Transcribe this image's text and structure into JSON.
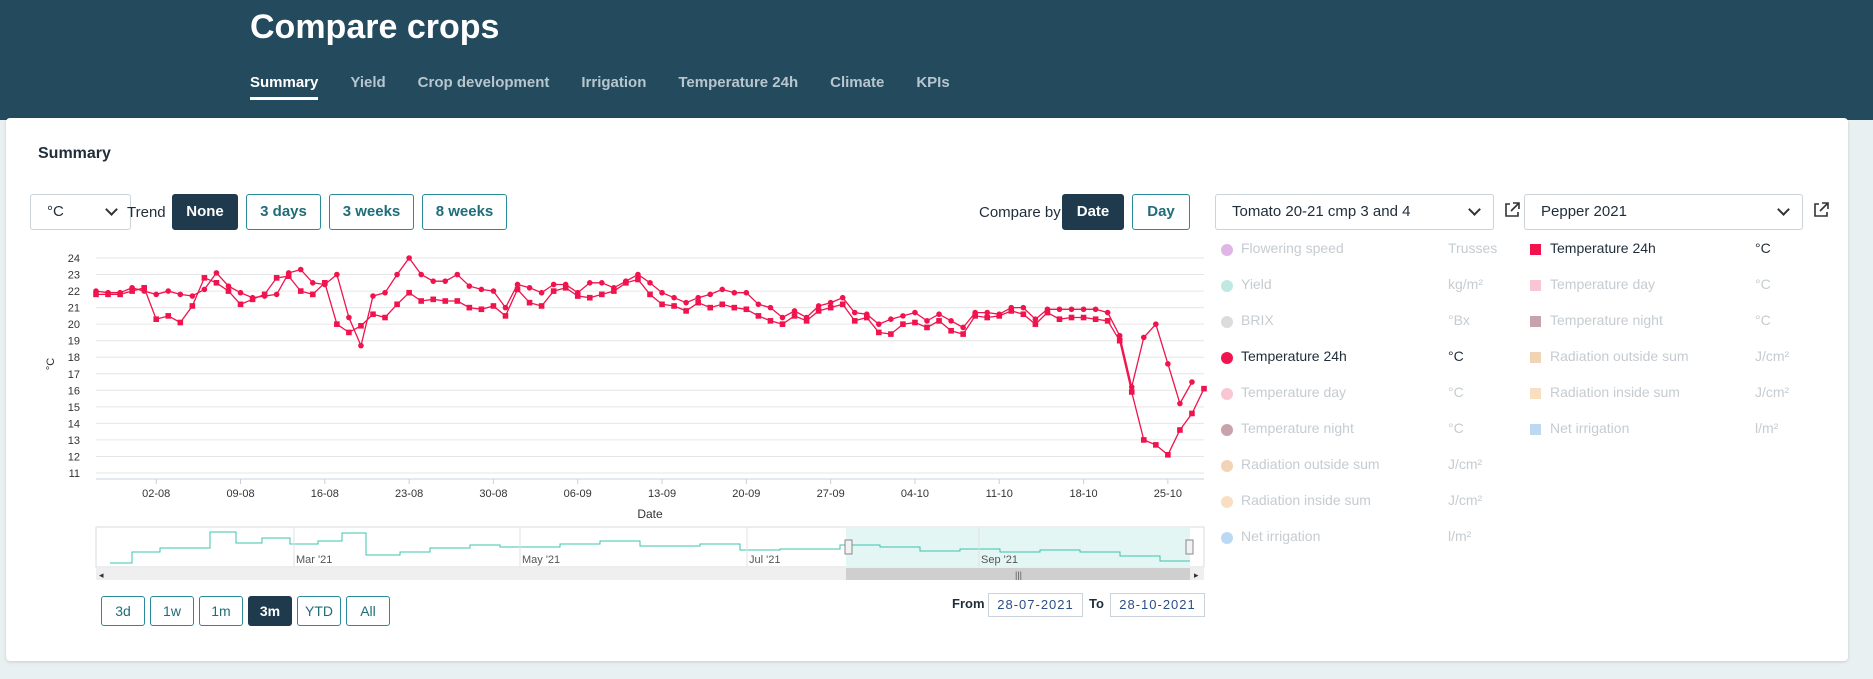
{
  "page": {
    "title": "Compare crops"
  },
  "tabs": [
    {
      "label": "Summary",
      "active": true
    },
    {
      "label": "Yield",
      "active": false
    },
    {
      "label": "Crop development",
      "active": false
    },
    {
      "label": "Irrigation",
      "active": false
    },
    {
      "label": "Temperature 24h",
      "active": false
    },
    {
      "label": "Climate",
      "active": false
    },
    {
      "label": "KPIs",
      "active": false
    }
  ],
  "summary": {
    "title": "Summary",
    "unit_select": "°C",
    "trend_label": "Trend",
    "trend_buttons": [
      {
        "label": "None",
        "active": true
      },
      {
        "label": "3 days",
        "active": false
      },
      {
        "label": "3 weeks",
        "active": false
      },
      {
        "label": "8 weeks",
        "active": false
      }
    ],
    "compare_by_label": "Compare by",
    "compare_buttons": [
      {
        "label": "Date",
        "active": true
      },
      {
        "label": "Day",
        "active": false
      }
    ],
    "crop_selects": [
      "Tomato 20-21 cmp 3 and 4",
      "Pepper 2021"
    ]
  },
  "legend_left": [
    {
      "name": "Flowering speed",
      "unit": "Trusses",
      "color": "#e0b6e6",
      "active": false
    },
    {
      "name": "Yield",
      "unit": "kg/m²",
      "color": "#bfe9e2",
      "active": false
    },
    {
      "name": "BRIX",
      "unit": "°Bx",
      "color": "#dcdcdc",
      "active": false
    },
    {
      "name": "Temperature 24h",
      "unit": "°C",
      "color": "#f0134d",
      "active": true
    },
    {
      "name": "Temperature day",
      "unit": "°C",
      "color": "#f9c6d3",
      "active": false
    },
    {
      "name": "Temperature night",
      "unit": "°C",
      "color": "#c9a3ac",
      "active": false
    },
    {
      "name": "Radiation outside sum",
      "unit": "J/cm²",
      "color": "#f3d3b6",
      "active": false
    },
    {
      "name": "Radiation inside sum",
      "unit": "J/cm²",
      "color": "#f9dfc2",
      "active": false
    },
    {
      "name": "Net irrigation",
      "unit": "l/m²",
      "color": "#bcd9f4",
      "active": false
    }
  ],
  "legend_right": [
    {
      "name": "Temperature 24h",
      "unit": "°C",
      "color": "#f0134d",
      "active": true
    },
    {
      "name": "Temperature day",
      "unit": "°C",
      "color": "#f9c6d3",
      "active": false
    },
    {
      "name": "Temperature night",
      "unit": "°C",
      "color": "#c9a3ac",
      "active": false
    },
    {
      "name": "Radiation outside sum",
      "unit": "J/cm²",
      "color": "#f3d3b6",
      "active": false
    },
    {
      "name": "Radiation inside sum",
      "unit": "J/cm²",
      "color": "#f9dfc2",
      "active": false
    },
    {
      "name": "Net irrigation",
      "unit": "l/m²",
      "color": "#bcd9f4",
      "active": false
    }
  ],
  "range_buttons": [
    {
      "label": "3d",
      "active": false
    },
    {
      "label": "1w",
      "active": false
    },
    {
      "label": "1m",
      "active": false
    },
    {
      "label": "3m",
      "active": true
    },
    {
      "label": "YTD",
      "active": false
    },
    {
      "label": "All",
      "active": false
    }
  ],
  "date_range": {
    "from_label": "From",
    "from": "28-07-2021",
    "to_label": "To",
    "to": "28-10-2021"
  },
  "navigator": {
    "labels": [
      "Mar '21",
      "May '21",
      "Jul '21",
      "Sep '21"
    ]
  },
  "chart_data": {
    "type": "line",
    "xlabel": "Date",
    "ylabel": "°C",
    "ylim": [
      11,
      24
    ],
    "yticks": [
      11,
      12,
      13,
      14,
      15,
      16,
      17,
      18,
      19,
      20,
      21,
      22,
      23,
      24
    ],
    "x_tick_labels": [
      "02-08",
      "09-08",
      "16-08",
      "23-08",
      "30-08",
      "06-09",
      "13-09",
      "20-09",
      "27-09",
      "04-10",
      "11-10",
      "18-10",
      "25-10"
    ],
    "x_range": [
      "2021-07-28",
      "2021-10-28"
    ],
    "grid": true,
    "series": [
      {
        "color": "#f0134d",
        "marker": "circle",
        "points": [
          [
            "2021-07-28",
            22.0
          ],
          [
            "2021-07-29",
            21.9
          ],
          [
            "2021-07-30",
            21.9
          ],
          [
            "2021-07-31",
            22.2
          ],
          [
            "2021-08-01",
            22.0
          ],
          [
            "2021-08-02",
            21.8
          ],
          [
            "2021-08-03",
            22.0
          ],
          [
            "2021-08-04",
            21.8
          ],
          [
            "2021-08-05",
            21.7
          ],
          [
            "2021-08-06",
            22.1
          ],
          [
            "2021-08-07",
            23.1
          ],
          [
            "2021-08-08",
            22.3
          ],
          [
            "2021-08-09",
            21.9
          ],
          [
            "2021-08-10",
            21.6
          ],
          [
            "2021-08-11",
            21.7
          ],
          [
            "2021-08-12",
            21.8
          ],
          [
            "2021-08-13",
            23.1
          ],
          [
            "2021-08-14",
            23.3
          ],
          [
            "2021-08-15",
            22.5
          ],
          [
            "2021-08-16",
            22.4
          ],
          [
            "2021-08-17",
            23.0
          ],
          [
            "2021-08-18",
            20.4
          ],
          [
            "2021-08-19",
            18.7
          ],
          [
            "2021-08-20",
            21.7
          ],
          [
            "2021-08-21",
            21.9
          ],
          [
            "2021-08-22",
            23.0
          ],
          [
            "2021-08-23",
            24.0
          ],
          [
            "2021-08-24",
            23.0
          ],
          [
            "2021-08-25",
            22.6
          ],
          [
            "2021-08-26",
            22.6
          ],
          [
            "2021-08-27",
            23.0
          ],
          [
            "2021-08-28",
            22.3
          ],
          [
            "2021-08-29",
            22.1
          ],
          [
            "2021-08-30",
            22.0
          ],
          [
            "2021-08-31",
            21.0
          ],
          [
            "2021-09-01",
            22.4
          ],
          [
            "2021-09-02",
            22.2
          ],
          [
            "2021-09-03",
            21.9
          ],
          [
            "2021-09-04",
            22.4
          ],
          [
            "2021-09-05",
            22.4
          ],
          [
            "2021-09-06",
            21.9
          ],
          [
            "2021-09-07",
            22.5
          ],
          [
            "2021-09-08",
            22.5
          ],
          [
            "2021-09-09",
            22.2
          ],
          [
            "2021-09-10",
            22.6
          ],
          [
            "2021-09-11",
            23.0
          ],
          [
            "2021-09-12",
            22.5
          ],
          [
            "2021-09-13",
            21.9
          ],
          [
            "2021-09-14",
            21.6
          ],
          [
            "2021-09-15",
            21.3
          ],
          [
            "2021-09-16",
            21.6
          ],
          [
            "2021-09-17",
            21.8
          ],
          [
            "2021-09-18",
            22.1
          ],
          [
            "2021-09-19",
            21.9
          ],
          [
            "2021-09-20",
            21.9
          ],
          [
            "2021-09-21",
            21.2
          ],
          [
            "2021-09-22",
            21.0
          ],
          [
            "2021-09-23",
            20.4
          ],
          [
            "2021-09-24",
            20.8
          ],
          [
            "2021-09-25",
            20.4
          ],
          [
            "2021-09-26",
            21.1
          ],
          [
            "2021-09-27",
            21.3
          ],
          [
            "2021-09-28",
            21.6
          ],
          [
            "2021-09-29",
            20.7
          ],
          [
            "2021-09-30",
            20.6
          ],
          [
            "2021-10-01",
            20.0
          ],
          [
            "2021-10-02",
            20.3
          ],
          [
            "2021-10-03",
            20.5
          ],
          [
            "2021-10-04",
            20.7
          ],
          [
            "2021-10-05",
            20.2
          ],
          [
            "2021-10-06",
            20.6
          ],
          [
            "2021-10-07",
            20.2
          ],
          [
            "2021-10-08",
            19.8
          ],
          [
            "2021-10-09",
            20.7
          ],
          [
            "2021-10-10",
            20.7
          ],
          [
            "2021-10-11",
            20.6
          ],
          [
            "2021-10-12",
            21.0
          ],
          [
            "2021-10-13",
            21.0
          ],
          [
            "2021-10-14",
            20.3
          ],
          [
            "2021-10-15",
            20.9
          ],
          [
            "2021-10-16",
            20.9
          ],
          [
            "2021-10-17",
            20.9
          ],
          [
            "2021-10-18",
            20.9
          ],
          [
            "2021-10-19",
            20.9
          ],
          [
            "2021-10-20",
            20.7
          ],
          [
            "2021-10-21",
            19.3
          ],
          [
            "2021-10-22",
            16.2
          ],
          [
            "2021-10-23",
            19.2
          ],
          [
            "2021-10-24",
            20.0
          ],
          [
            "2021-10-25",
            17.6
          ],
          [
            "2021-10-26",
            15.2
          ],
          [
            "2021-10-27",
            16.5
          ]
        ]
      },
      {
        "color": "#f0134d",
        "marker": "square",
        "points": [
          [
            "2021-07-28",
            21.8
          ],
          [
            "2021-07-29",
            21.8
          ],
          [
            "2021-07-30",
            21.8
          ],
          [
            "2021-07-31",
            22.0
          ],
          [
            "2021-08-01",
            22.2
          ],
          [
            "2021-08-02",
            20.3
          ],
          [
            "2021-08-03",
            20.5
          ],
          [
            "2021-08-04",
            20.1
          ],
          [
            "2021-08-05",
            21.1
          ],
          [
            "2021-08-06",
            22.8
          ],
          [
            "2021-08-07",
            22.5
          ],
          [
            "2021-08-08",
            22.0
          ],
          [
            "2021-08-09",
            21.2
          ],
          [
            "2021-08-10",
            21.5
          ],
          [
            "2021-08-11",
            21.8
          ],
          [
            "2021-08-12",
            22.8
          ],
          [
            "2021-08-13",
            22.9
          ],
          [
            "2021-08-14",
            22.0
          ],
          [
            "2021-08-15",
            21.8
          ],
          [
            "2021-08-16",
            22.5
          ],
          [
            "2021-08-17",
            20.0
          ],
          [
            "2021-08-18",
            19.5
          ],
          [
            "2021-08-19",
            19.9
          ],
          [
            "2021-08-20",
            20.6
          ],
          [
            "2021-08-21",
            20.4
          ],
          [
            "2021-08-22",
            21.2
          ],
          [
            "2021-08-23",
            21.9
          ],
          [
            "2021-08-24",
            21.4
          ],
          [
            "2021-08-25",
            21.5
          ],
          [
            "2021-08-26",
            21.4
          ],
          [
            "2021-08-27",
            21.4
          ],
          [
            "2021-08-28",
            21.0
          ],
          [
            "2021-08-29",
            20.9
          ],
          [
            "2021-08-30",
            21.1
          ],
          [
            "2021-08-31",
            20.5
          ],
          [
            "2021-09-01",
            22.1
          ],
          [
            "2021-09-02",
            21.3
          ],
          [
            "2021-09-03",
            21.1
          ],
          [
            "2021-09-04",
            22.0
          ],
          [
            "2021-09-05",
            22.2
          ],
          [
            "2021-09-06",
            21.7
          ],
          [
            "2021-09-07",
            21.6
          ],
          [
            "2021-09-08",
            21.8
          ],
          [
            "2021-09-09",
            22.0
          ],
          [
            "2021-09-10",
            22.5
          ],
          [
            "2021-09-11",
            22.7
          ],
          [
            "2021-09-12",
            21.8
          ],
          [
            "2021-09-13",
            21.2
          ],
          [
            "2021-09-14",
            21.1
          ],
          [
            "2021-09-15",
            20.8
          ],
          [
            "2021-09-16",
            21.3
          ],
          [
            "2021-09-17",
            21.0
          ],
          [
            "2021-09-18",
            21.2
          ],
          [
            "2021-09-19",
            21.0
          ],
          [
            "2021-09-20",
            20.9
          ],
          [
            "2021-09-21",
            20.5
          ],
          [
            "2021-09-22",
            20.2
          ],
          [
            "2021-09-23",
            20.0
          ],
          [
            "2021-09-24",
            20.5
          ],
          [
            "2021-09-25",
            20.2
          ],
          [
            "2021-09-26",
            20.8
          ],
          [
            "2021-09-27",
            21.0
          ],
          [
            "2021-09-28",
            21.2
          ],
          [
            "2021-09-29",
            20.2
          ],
          [
            "2021-09-30",
            20.4
          ],
          [
            "2021-10-01",
            19.5
          ],
          [
            "2021-10-02",
            19.4
          ],
          [
            "2021-10-03",
            20.0
          ],
          [
            "2021-10-04",
            20.1
          ],
          [
            "2021-10-05",
            19.8
          ],
          [
            "2021-10-06",
            20.2
          ],
          [
            "2021-10-07",
            19.6
          ],
          [
            "2021-10-08",
            19.4
          ],
          [
            "2021-10-09",
            20.5
          ],
          [
            "2021-10-10",
            20.4
          ],
          [
            "2021-10-11",
            20.5
          ],
          [
            "2021-10-12",
            20.8
          ],
          [
            "2021-10-13",
            20.6
          ],
          [
            "2021-10-14",
            20.0
          ],
          [
            "2021-10-15",
            20.7
          ],
          [
            "2021-10-16",
            20.3
          ],
          [
            "2021-10-17",
            20.4
          ],
          [
            "2021-10-18",
            20.4
          ],
          [
            "2021-10-19",
            20.3
          ],
          [
            "2021-10-20",
            20.2
          ],
          [
            "2021-10-21",
            19.0
          ],
          [
            "2021-10-22",
            15.9
          ],
          [
            "2021-10-23",
            13.0
          ],
          [
            "2021-10-24",
            12.7
          ],
          [
            "2021-10-25",
            12.1
          ],
          [
            "2021-10-26",
            13.6
          ],
          [
            "2021-10-27",
            14.6
          ],
          [
            "2021-10-28",
            16.1
          ]
        ]
      }
    ]
  }
}
